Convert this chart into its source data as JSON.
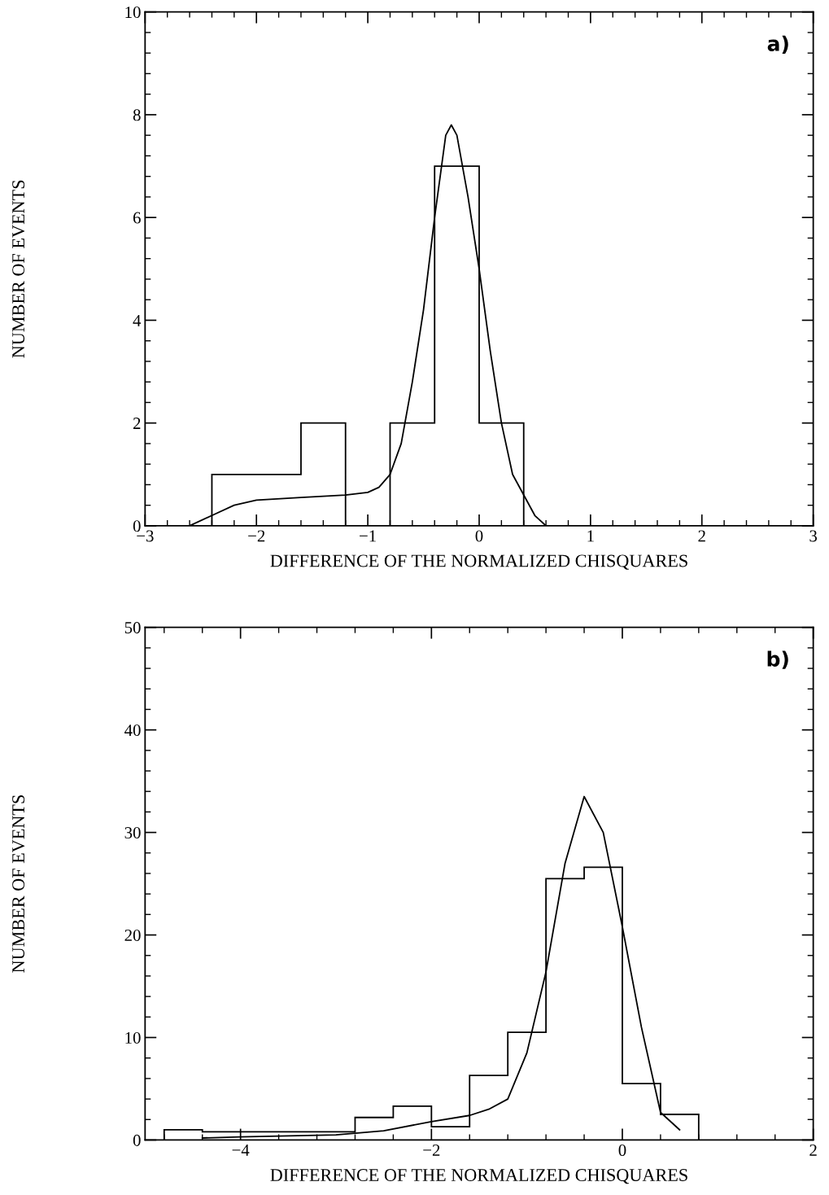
{
  "chart_data": [
    {
      "type": "histogram",
      "xlabel": "DIFFERENCE OF THE NORMALIZED CHISQUARES",
      "ylabel": "NUMBER OF EVENTS",
      "annotations": [
        "a)"
      ],
      "bins": [
        -2.4,
        -2.0,
        -1.6,
        -1.2,
        -0.8,
        -0.4,
        0,
        0.4
      ],
      "values": [
        1,
        1,
        2,
        0,
        2,
        7,
        2
      ],
      "color": "#000000",
      "series": [
        {
          "type": "line",
          "color": "#000000",
          "x": [
            -2.6,
            -2.4,
            -2.2,
            -2.0,
            -1.6,
            -1.2,
            -1.0,
            -0.9,
            -0.8,
            -0.7,
            -0.6,
            -0.5,
            -0.4,
            -0.3,
            -0.25,
            -0.2,
            -0.1,
            0,
            0.1,
            0.2,
            0.3,
            0.4,
            0.5,
            0.6
          ],
          "values": [
            0,
            0.2,
            0.4,
            0.5,
            0.55,
            0.6,
            0.65,
            0.75,
            1.0,
            1.6,
            2.8,
            4.2,
            6.0,
            7.6,
            7.8,
            7.6,
            6.4,
            5.0,
            3.4,
            2.0,
            1.0,
            0.6,
            0.2,
            0
          ]
        }
      ],
      "xlim": [
        -3,
        3
      ],
      "xticks": [
        -3,
        -2,
        -1,
        0,
        1,
        2,
        3
      ],
      "ylim": [
        0,
        10
      ],
      "yticks": [
        0,
        2,
        4,
        6,
        8,
        10
      ],
      "grid": false
    },
    {
      "type": "histogram",
      "xlabel": "DIFFERENCE OF THE NORMALIZED CHISQUARES",
      "ylabel": "NUMBER OF EVENTS",
      "annotations": [
        "b)"
      ],
      "bins": [
        -4.8,
        -4.4,
        -4.0,
        -3.6,
        -3.2,
        -2.8,
        -2.4,
        -2.0,
        -1.6,
        -1.2,
        -0.8,
        -0.4,
        0,
        0.4,
        0.8
      ],
      "values": [
        1,
        0.8,
        0.8,
        0.8,
        0.8,
        2.2,
        3.3,
        1.3,
        6.3,
        10.5,
        25.5,
        26.6,
        5.5,
        2.5
      ],
      "color": "#000000",
      "series": [
        {
          "type": "line",
          "color": "#000000",
          "x": [
            -4.4,
            -4.0,
            -3.5,
            -3.0,
            -2.5,
            -2.0,
            -1.6,
            -1.4,
            -1.2,
            -1.0,
            -0.8,
            -0.6,
            -0.4,
            -0.2,
            0,
            0.2,
            0.4,
            0.6
          ],
          "values": [
            0.2,
            0.3,
            0.4,
            0.5,
            0.9,
            1.8,
            2.4,
            3.0,
            4.0,
            8.5,
            16.4,
            27,
            33.5,
            30,
            20.8,
            11,
            2.7,
            1.0
          ]
        }
      ],
      "xlim": [
        -5,
        2
      ],
      "xticks": [
        -4,
        -2,
        0,
        2
      ],
      "ylim": [
        0,
        50
      ],
      "yticks": [
        0,
        10,
        20,
        30,
        40,
        50
      ],
      "grid": false
    }
  ]
}
